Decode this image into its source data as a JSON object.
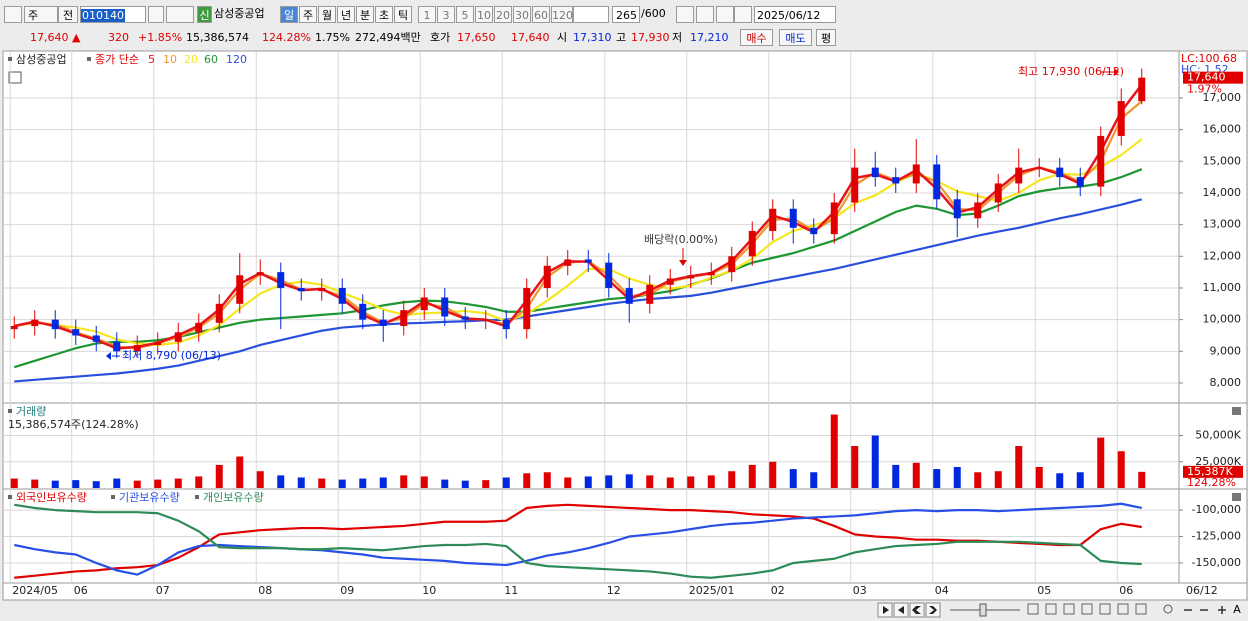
{
  "toolbar": {
    "market": "주",
    "mode": "전",
    "code": "010140",
    "new_badge": "신",
    "name": "삼성중공업",
    "periods": [
      "일",
      "주",
      "월",
      "년",
      "분",
      "초",
      "틱"
    ],
    "intervals": [
      "1",
      "3",
      "5",
      "10",
      "20",
      "30",
      "60",
      "120"
    ],
    "count": "265",
    "count_max": "/600",
    "date": "2025/06/12"
  },
  "quote": {
    "price": "17,640 ▲",
    "change": "320",
    "change_pct": "+1.85%",
    "volume": "15,386,574",
    "volume_ratio": "124.28%",
    "turnover": "1.75%",
    "amount": "272,494백만",
    "ask_label": "호가",
    "ask": "17,650",
    "bid": "17,640",
    "open_label": "시",
    "open": "17,310",
    "high_label": "고",
    "high": "17,930",
    "low_label": "저",
    "low": "17,210",
    "buy": "매수",
    "sell": "매도",
    "avg": "평"
  },
  "chart_data": [
    {
      "type": "candlestick",
      "title": "삼성중공업",
      "subtitle": "종가 단순",
      "lc_label": "LC:100.68",
      "hc_label": "HC: 1.52",
      "current_pct": "1.97%",
      "x_end_label": "06/12",
      "annotations": [
        "최고 17,930 (06/12)",
        "최저 8,790 (06/13)",
        "배당락(0.00%)"
      ],
      "up_color": "#e00000",
      "down_color": "#0028e0",
      "grid": true,
      "categories": [
        "2024/05",
        null,
        null,
        "06",
        null,
        null,
        null,
        "07",
        null,
        null,
        null,
        null,
        "08",
        null,
        null,
        null,
        "09",
        null,
        null,
        null,
        "10",
        null,
        null,
        null,
        "11",
        null,
        null,
        null,
        null,
        "12",
        null,
        null,
        null,
        "2025/01",
        null,
        null,
        null,
        "02",
        null,
        null,
        null,
        "03",
        null,
        null,
        null,
        "04",
        null,
        null,
        null,
        null,
        "05",
        null,
        null,
        null,
        "06",
        null
      ],
      "open": [
        9700,
        9800,
        10000,
        9700,
        9500,
        9300,
        9000,
        9200,
        9300,
        9600,
        9900,
        10500,
        11400,
        11500,
        11000,
        10900,
        11000,
        10500,
        10000,
        9800,
        10300,
        10700,
        10100,
        10000,
        10000,
        9700,
        11000,
        11700,
        11900,
        11800,
        11000,
        10500,
        11100,
        11300,
        11400,
        11500,
        12000,
        12800,
        13500,
        12900,
        12700,
        13700,
        14800,
        14500,
        14300,
        14900,
        13800,
        13200,
        13700,
        14300,
        14800,
        14800,
        14500,
        14200,
        15800,
        16900
      ],
      "high": [
        10100,
        10300,
        10300,
        10000,
        9800,
        9600,
        9500,
        9600,
        9900,
        10200,
        10800,
        12100,
        11900,
        11800,
        11300,
        11300,
        11300,
        10800,
        10300,
        10600,
        11000,
        11000,
        10400,
        10300,
        10300,
        11300,
        12000,
        12200,
        12200,
        12100,
        11300,
        11400,
        11600,
        11700,
        11800,
        12300,
        13100,
        13800,
        13800,
        13200,
        14000,
        15400,
        15300,
        14800,
        15700,
        15200,
        14100,
        14000,
        14600,
        15400,
        15100,
        15100,
        14800,
        16100,
        17300,
        17930
      ],
      "low": [
        9400,
        9500,
        9400,
        9200,
        9000,
        8790,
        8800,
        8900,
        9000,
        9300,
        9600,
        10200,
        11100,
        9700,
        10600,
        10600,
        10200,
        9700,
        9300,
        9500,
        10000,
        9800,
        9700,
        9700,
        9400,
        9400,
        10700,
        11400,
        11500,
        10700,
        9900,
        10200,
        10800,
        11000,
        11100,
        11200,
        11700,
        12500,
        12400,
        12400,
        12400,
        13400,
        14200,
        14000,
        14000,
        13500,
        12600,
        12900,
        13400,
        14000,
        14500,
        14200,
        13900,
        13900,
        15500,
        16800
      ],
      "close": [
        9800,
        10000,
        9700,
        9500,
        9300,
        9000,
        9200,
        9300,
        9600,
        9900,
        10500,
        11400,
        11500,
        11000,
        10900,
        11000,
        10500,
        10000,
        9800,
        10300,
        10700,
        10100,
        10000,
        10000,
        9700,
        11000,
        11700,
        11900,
        11800,
        11000,
        10500,
        11100,
        11300,
        11400,
        11500,
        12000,
        12800,
        13500,
        12900,
        12700,
        13700,
        14800,
        14500,
        14300,
        14900,
        13800,
        13200,
        13700,
        14300,
        14800,
        14800,
        14500,
        14200,
        15800,
        16900,
        17640
      ],
      "series": [
        {
          "name": "5",
          "color": "#e8141c",
          "values": [
            9800,
            9940,
            9790,
            9560,
            9360,
            9090,
            9140,
            9270,
            9510,
            9810,
            10320,
            11130,
            11470,
            11150,
            10930,
            10970,
            10650,
            10150,
            9860,
            10150,
            10580,
            10280,
            10030,
            10000,
            9790,
            10610,
            11490,
            11840,
            11830,
            11240,
            10650,
            10920,
            11240,
            11370,
            11470,
            11850,
            12560,
            13290,
            13080,
            12760,
            13400,
            14470,
            14590,
            14360,
            14720,
            14130,
            13380,
            13550,
            14120,
            14650,
            14800,
            14590,
            14290,
            15320,
            16570,
            17420
          ]
        },
        {
          "name": "10",
          "color": "#f0962d",
          "values": [
            9800,
            9900,
            9850,
            9600,
            9400,
            9150,
            9100,
            9250,
            9450,
            9750,
            10200,
            10950,
            11450,
            11250,
            10950,
            10950,
            10750,
            10250,
            9900,
            10050,
            10500,
            10400,
            10050,
            10000,
            9850,
            10350,
            11350,
            11800,
            11850,
            11400,
            10750,
            10800,
            11200,
            11350,
            11450,
            11750,
            12400,
            13150,
            13200,
            12800,
            13200,
            14250,
            14650,
            14400,
            14600,
            14350,
            13500,
            13450,
            14000,
            14550,
            14800,
            14650,
            14350,
            15000,
            16350,
            16900
          ]
        },
        {
          "name": "20",
          "color": "#f5e61e",
          "values": [
            9800,
            9900,
            9830,
            9750,
            9625,
            9375,
            9250,
            9200,
            9275,
            9500,
            9825,
            10350,
            10825,
            11100,
            11200,
            11100,
            10850,
            10600,
            10325,
            10150,
            10200,
            10225,
            10275,
            10200,
            9950,
            10175,
            10600,
            11075,
            11600,
            11600,
            11300,
            11100,
            10975,
            11075,
            11325,
            11550,
            11925,
            12450,
            12800,
            12975,
            13200,
            13675,
            13925,
            14325,
            14625,
            14375,
            14050,
            13900,
            13750,
            14000,
            14400,
            14600,
            14575,
            14825,
            15200,
            15700
          ]
        },
        {
          "name": "60",
          "color": "#1e9632",
          "values": [
            8500,
            8700,
            8900,
            9100,
            9250,
            9300,
            9300,
            9350,
            9450,
            9600,
            9750,
            9900,
            10000,
            10050,
            10100,
            10150,
            10200,
            10300,
            10450,
            10550,
            10600,
            10580,
            10500,
            10400,
            10250,
            10250,
            10350,
            10450,
            10550,
            10650,
            10700,
            10800,
            10900,
            11100,
            11300,
            11550,
            11800,
            11950,
            12100,
            12300,
            12500,
            12800,
            13100,
            13400,
            13600,
            13500,
            13300,
            13350,
            13600,
            13900,
            14050,
            14150,
            14200,
            14300,
            14500,
            14750
          ]
        },
        {
          "name": "120",
          "color": "#2850dc",
          "values": [
            8050,
            8100,
            8150,
            8200,
            8250,
            8300,
            8370,
            8450,
            8550,
            8700,
            8850,
            9000,
            9200,
            9350,
            9500,
            9650,
            9750,
            9800,
            9850,
            9880,
            9900,
            9930,
            9950,
            9980,
            10000,
            10100,
            10200,
            10300,
            10400,
            10500,
            10580,
            10650,
            10700,
            10750,
            10850,
            10980,
            11100,
            11230,
            11350,
            11480,
            11600,
            11750,
            11900,
            12050,
            12200,
            12350,
            12500,
            12650,
            12780,
            12900,
            13050,
            13200,
            13330,
            13480,
            13630,
            13800
          ]
        }
      ],
      "current_tag": {
        "value": 17640,
        "label": "17,640"
      },
      "ylim": [
        7400,
        18450
      ],
      "yticks": [
        {
          "value": 8000,
          "label": "8,000"
        },
        {
          "value": 9000,
          "label": "9,000"
        },
        {
          "value": 10000,
          "label": "10,000"
        },
        {
          "value": 11000,
          "label": "11,000"
        },
        {
          "value": 12000,
          "label": "12,000"
        },
        {
          "value": 13000,
          "label": "13,000"
        },
        {
          "value": 14000,
          "label": "14,000"
        },
        {
          "value": 15000,
          "label": "15,000"
        },
        {
          "value": 16000,
          "label": "16,000"
        },
        {
          "value": 17000,
          "label": "17,000"
        }
      ]
    },
    {
      "type": "bar",
      "title": "거래량",
      "subtitle": "15,386,574주(124.28%)",
      "current_pct": "124.28%",
      "grid": true,
      "values": [
        9000,
        8000,
        7000,
        7500,
        6500,
        9000,
        7000,
        8000,
        9000,
        11000,
        22000,
        30000,
        16000,
        12000,
        10000,
        9000,
        8000,
        9000,
        10000,
        12000,
        11000,
        8000,
        7000,
        7500,
        10000,
        14000,
        15000,
        10000,
        11000,
        12000,
        13000,
        12000,
        10000,
        11000,
        12000,
        16000,
        22000,
        25000,
        18000,
        15000,
        70000,
        40000,
        50000,
        22000,
        24000,
        18000,
        20000,
        15000,
        16000,
        40000,
        20000,
        14000,
        15000,
        48000,
        35000,
        15387
      ],
      "current_tag": {
        "value": 15387,
        "label": "15,387K"
      },
      "ylim": [
        0,
        80000
      ],
      "yticks": [
        {
          "value": 25000,
          "label": "25,000K"
        },
        {
          "value": 50000,
          "label": "50,000K"
        }
      ]
    },
    {
      "type": "line",
      "grid": true,
      "series": [
        {
          "name": "외국인보유수량",
          "color": "#e00000",
          "values": [
            -164000,
            -162000,
            -160000,
            -158000,
            -157000,
            -155000,
            -154000,
            -152000,
            -145000,
            -135000,
            -123000,
            -121000,
            -119000,
            -118000,
            -117000,
            -117000,
            -118000,
            -117000,
            -116000,
            -115000,
            -113000,
            -111000,
            -111000,
            -111000,
            -110000,
            -98000,
            -96000,
            -95000,
            -96000,
            -97000,
            -98000,
            -99000,
            -100000,
            -100000,
            -101000,
            -102000,
            -104000,
            -105000,
            -106000,
            -108000,
            -115000,
            -123000,
            -125000,
            -126000,
            -128000,
            -128000,
            -129000,
            -129000,
            -130000,
            -131000,
            -132000,
            -133000,
            -133000,
            -118000,
            -113000,
            -116000
          ]
        },
        {
          "name": "기관보유수량",
          "color": "#2850e6",
          "values": [
            -133000,
            -137000,
            -140000,
            -142000,
            -150000,
            -157000,
            -161000,
            -152000,
            -140000,
            -134000,
            -133000,
            -134000,
            -135000,
            -136000,
            -137000,
            -138000,
            -140000,
            -142000,
            -145000,
            -146000,
            -147000,
            -148000,
            -150000,
            -151000,
            -152000,
            -148000,
            -143000,
            -140000,
            -136000,
            -131000,
            -125000,
            -123000,
            -121000,
            -118000,
            -115000,
            -113000,
            -112000,
            -110000,
            -108000,
            -107000,
            -106000,
            -105000,
            -103000,
            -101000,
            -100000,
            -101000,
            -100000,
            -100000,
            -101000,
            -100000,
            -99000,
            -98000,
            -97000,
            -96000,
            -94000,
            -98000
          ]
        },
        {
          "name": "개인보유수량",
          "color": "#2e8b57",
          "values": [
            -95000,
            -98000,
            -100000,
            -101000,
            -102000,
            -102000,
            -102000,
            -103000,
            -110000,
            -120000,
            -135000,
            -136000,
            -136000,
            -136000,
            -137000,
            -137000,
            -136000,
            -137000,
            -138000,
            -136000,
            -134000,
            -133000,
            -133000,
            -132000,
            -134000,
            -150000,
            -153000,
            -154000,
            -155000,
            -156000,
            -157000,
            -158000,
            -160000,
            -163000,
            -164000,
            -162000,
            -160000,
            -157000,
            -150000,
            -148000,
            -146000,
            -140000,
            -137000,
            -134000,
            -133000,
            -132000,
            -130000,
            -130000,
            -130000,
            -130000,
            -131000,
            -132000,
            -133000,
            -148000,
            -150000,
            -151000
          ]
        }
      ],
      "ylim": [
        -168000,
        -81000
      ],
      "yticks": [
        {
          "value": -100000,
          "label": "-100,000"
        },
        {
          "value": -125000,
          "label": "-125,000"
        },
        {
          "value": -150000,
          "label": "-150,000"
        }
      ]
    }
  ],
  "bottom_bar": {
    "font_label": "A"
  }
}
